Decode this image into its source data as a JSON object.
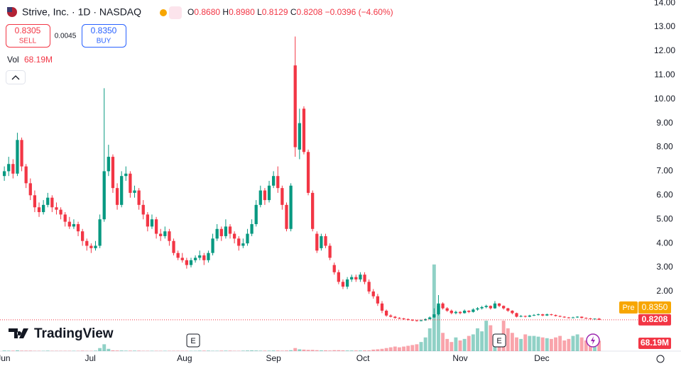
{
  "chart_data": {
    "type": "candlestick",
    "title": "Strive, Inc. · 1D · NASDAQ",
    "ohlc_header": [
      [
        "O",
        "0.8680"
      ],
      [
        "H",
        "0.8980"
      ],
      [
        "L",
        "0.8129"
      ],
      [
        "C",
        "0.8208"
      ]
    ],
    "change": "−0.0396 (−4.60%)",
    "quote": {
      "sell": "0.8305",
      "sell_label": "SELL",
      "spread": "0.0045",
      "buy": "0.8350",
      "buy_label": "BUY"
    },
    "volume_label": "Vol",
    "volume_value": "68.19M",
    "pre_label": "Pre",
    "pre_price": "0.8350",
    "last_price": {
      "value": 0.8208,
      "label": "0.8208"
    },
    "last_volume_label": "68.19M",
    "earnings": [
      {
        "x": 43.5,
        "label": "E"
      },
      {
        "x": 114,
        "label": "E"
      }
    ],
    "brand": "TradingView",
    "up_color": "#089981",
    "down_color": "#f23645",
    "xlim": [
      -1,
      140
    ],
    "xticks": [
      {
        "value": -0.2,
        "label": "Jun"
      },
      {
        "value": 19.8,
        "label": "Jul"
      },
      {
        "value": 41.5,
        "label": "Aug"
      },
      {
        "value": 62,
        "label": "Sep"
      },
      {
        "value": 82.6,
        "label": "Oct"
      },
      {
        "value": 105,
        "label": "Nov"
      },
      {
        "value": 123.8,
        "label": "Dec"
      }
    ],
    "ylim": [
      -0.48,
      14.12
    ],
    "yticks": [
      {
        "value": 2,
        "label": "2.00"
      },
      {
        "value": 3,
        "label": "3.00"
      },
      {
        "value": 4,
        "label": "4.00"
      },
      {
        "value": 5,
        "label": "5.00"
      },
      {
        "value": 6,
        "label": "6.00"
      },
      {
        "value": 7,
        "label": "7.00"
      },
      {
        "value": 8,
        "label": "8.00"
      },
      {
        "value": 9,
        "label": "9.00"
      },
      {
        "value": 10,
        "label": "10.00"
      },
      {
        "value": 11,
        "label": "11.00"
      },
      {
        "value": 12,
        "label": "12.00"
      },
      {
        "value": 13,
        "label": "13.00"
      },
      {
        "value": 14,
        "label": "14.00"
      }
    ],
    "volume_lim": [
      0,
      630
    ],
    "ohlc": [
      [
        6.8,
        7.2,
        6.6,
        7.0
      ],
      [
        7.0,
        7.6,
        6.8,
        7.3
      ],
      [
        7.3,
        7.5,
        6.7,
        6.9
      ],
      [
        6.9,
        8.6,
        6.8,
        8.3
      ],
      [
        8.3,
        8.4,
        7.0,
        7.2
      ],
      [
        7.2,
        7.3,
        6.3,
        6.5
      ],
      [
        6.5,
        6.7,
        5.8,
        6.0
      ],
      [
        6.0,
        6.2,
        5.3,
        5.5
      ],
      [
        5.5,
        5.7,
        5.1,
        5.3
      ],
      [
        5.3,
        5.8,
        5.2,
        5.6
      ],
      [
        5.6,
        6.1,
        5.5,
        5.9
      ],
      [
        5.9,
        6.0,
        5.3,
        5.5
      ],
      [
        5.5,
        5.7,
        5.2,
        5.4
      ],
      [
        5.4,
        5.5,
        5.0,
        5.2
      ],
      [
        5.2,
        5.3,
        4.7,
        4.9
      ],
      [
        4.9,
        5.1,
        4.6,
        4.7
      ],
      [
        4.7,
        5.0,
        4.6,
        4.8
      ],
      [
        4.8,
        4.9,
        4.3,
        4.5
      ],
      [
        4.5,
        4.6,
        3.9,
        4.1
      ],
      [
        4.1,
        4.2,
        3.7,
        3.9
      ],
      [
        3.9,
        4.0,
        3.6,
        3.8
      ],
      [
        3.8,
        4.1,
        3.7,
        3.9
      ],
      [
        3.9,
        5.2,
        3.8,
        5.0
      ],
      [
        5.0,
        10.45,
        4.9,
        7.0
      ],
      [
        7.0,
        8.1,
        6.8,
        7.6
      ],
      [
        7.6,
        7.7,
        6.1,
        6.3
      ],
      [
        6.3,
        6.5,
        5.4,
        5.6
      ],
      [
        5.6,
        7.0,
        5.5,
        6.8
      ],
      [
        6.8,
        7.2,
        6.6,
        6.9
      ],
      [
        6.9,
        7.0,
        5.9,
        6.1
      ],
      [
        6.1,
        6.4,
        5.9,
        6.2
      ],
      [
        6.2,
        6.3,
        5.4,
        5.6
      ],
      [
        5.6,
        5.8,
        5.0,
        5.2
      ],
      [
        5.2,
        5.3,
        4.5,
        4.7
      ],
      [
        4.7,
        5.2,
        4.6,
        5.0
      ],
      [
        5.0,
        5.1,
        4.2,
        4.4
      ],
      [
        4.4,
        4.6,
        4.1,
        4.3
      ],
      [
        4.3,
        4.7,
        4.2,
        4.5
      ],
      [
        4.5,
        4.6,
        3.9,
        4.1
      ],
      [
        4.1,
        4.2,
        3.5,
        3.6
      ],
      [
        3.6,
        3.7,
        3.3,
        3.4
      ],
      [
        3.4,
        3.6,
        3.2,
        3.3
      ],
      [
        3.3,
        3.4,
        2.95,
        3.1
      ],
      [
        3.1,
        3.4,
        3.0,
        3.3
      ],
      [
        3.3,
        3.5,
        3.2,
        3.4
      ],
      [
        3.4,
        3.7,
        3.3,
        3.5
      ],
      [
        3.5,
        3.6,
        3.1,
        3.3
      ],
      [
        3.3,
        3.7,
        3.2,
        3.6
      ],
      [
        3.6,
        4.4,
        3.5,
        4.2
      ],
      [
        4.2,
        4.8,
        4.1,
        4.6
      ],
      [
        4.6,
        4.7,
        4.1,
        4.3
      ],
      [
        4.3,
        5.0,
        4.2,
        4.7
      ],
      [
        4.7,
        4.8,
        4.2,
        4.4
      ],
      [
        4.4,
        4.5,
        4.0,
        4.2
      ],
      [
        4.2,
        4.3,
        3.7,
        3.9
      ],
      [
        3.9,
        4.2,
        3.8,
        4.0
      ],
      [
        4.0,
        4.6,
        3.9,
        4.4
      ],
      [
        4.4,
        5.0,
        4.3,
        4.8
      ],
      [
        4.8,
        5.8,
        4.7,
        5.6
      ],
      [
        5.6,
        6.4,
        5.5,
        6.2
      ],
      [
        6.2,
        6.3,
        5.6,
        5.8
      ],
      [
        5.8,
        6.6,
        5.7,
        6.4
      ],
      [
        6.4,
        7.0,
        6.3,
        6.8
      ],
      [
        6.8,
        7.2,
        6.1,
        6.3
      ],
      [
        6.3,
        6.4,
        5.4,
        5.6
      ],
      [
        5.6,
        5.7,
        4.5,
        4.6
      ],
      [
        4.6,
        6.5,
        4.5,
        6.4
      ],
      [
        11.4,
        12.6,
        7.6,
        8.0
      ],
      [
        7.9,
        9.6,
        7.5,
        9.0
      ],
      [
        9.6,
        9.7,
        7.7,
        7.8
      ],
      [
        7.8,
        7.9,
        6.0,
        6.1
      ],
      [
        6.1,
        6.2,
        4.5,
        4.6
      ],
      [
        4.4,
        4.5,
        3.6,
        3.7
      ],
      [
        3.8,
        4.4,
        3.7,
        4.3
      ],
      [
        4.3,
        4.4,
        3.8,
        3.9
      ],
      [
        3.9,
        4.0,
        3.3,
        3.4
      ],
      [
        3.1,
        3.2,
        2.7,
        2.8
      ],
      [
        2.8,
        2.9,
        2.3,
        2.4
      ],
      [
        2.4,
        2.5,
        2.1,
        2.2
      ],
      [
        2.2,
        2.6,
        2.1,
        2.5
      ],
      [
        2.5,
        2.7,
        2.4,
        2.6
      ],
      [
        2.6,
        2.7,
        2.4,
        2.5
      ],
      [
        2.5,
        2.8,
        2.4,
        2.7
      ],
      [
        2.7,
        2.8,
        2.3,
        2.4
      ],
      [
        2.4,
        2.5,
        1.9,
        2.0
      ],
      [
        2.0,
        2.1,
        1.7,
        1.8
      ],
      [
        1.8,
        1.9,
        1.4,
        1.5
      ],
      [
        1.5,
        1.6,
        1.1,
        1.2
      ],
      [
        1.2,
        1.25,
        0.95,
        1.0
      ],
      [
        1.0,
        1.05,
        0.92,
        0.95
      ],
      [
        0.95,
        0.98,
        0.87,
        0.9
      ],
      [
        0.9,
        0.93,
        0.85,
        0.88
      ],
      [
        0.88,
        0.9,
        0.82,
        0.85
      ],
      [
        0.85,
        0.88,
        0.79,
        0.82
      ],
      [
        0.82,
        0.85,
        0.77,
        0.8
      ],
      [
        0.8,
        0.82,
        0.75,
        0.78
      ],
      [
        0.78,
        0.83,
        0.76,
        0.8
      ],
      [
        0.8,
        0.88,
        0.78,
        0.85
      ],
      [
        0.85,
        0.96,
        0.83,
        0.92
      ],
      [
        0.92,
        1.3,
        0.9,
        1.05
      ],
      [
        1.05,
        1.85,
        1.0,
        1.5
      ],
      [
        1.5,
        1.55,
        1.25,
        1.3
      ],
      [
        1.3,
        1.35,
        1.15,
        1.2
      ],
      [
        1.2,
        1.25,
        1.05,
        1.1
      ],
      [
        1.1,
        1.2,
        1.05,
        1.15
      ],
      [
        1.15,
        1.18,
        1.05,
        1.1
      ],
      [
        1.1,
        1.25,
        1.08,
        1.2
      ],
      [
        1.2,
        1.22,
        1.1,
        1.15
      ],
      [
        1.15,
        1.3,
        1.12,
        1.25
      ],
      [
        1.25,
        1.35,
        1.2,
        1.3
      ],
      [
        1.3,
        1.4,
        1.25,
        1.35
      ],
      [
        1.35,
        1.45,
        1.3,
        1.4
      ],
      [
        1.4,
        1.42,
        1.25,
        1.3
      ],
      [
        1.3,
        1.6,
        1.28,
        1.5
      ],
      [
        1.5,
        1.52,
        1.35,
        1.4
      ],
      [
        1.4,
        1.42,
        1.25,
        1.3
      ],
      [
        1.3,
        1.32,
        1.15,
        1.2
      ],
      [
        1.2,
        1.22,
        1.05,
        1.1
      ],
      [
        1.1,
        1.12,
        0.92,
        0.95
      ],
      [
        0.95,
        1.02,
        0.93,
        0.98
      ],
      [
        0.98,
        1.0,
        0.92,
        0.95
      ],
      [
        0.95,
        1.03,
        0.93,
        1.0
      ],
      [
        1.0,
        1.06,
        0.98,
        1.02
      ],
      [
        1.02,
        1.08,
        1.0,
        1.05
      ],
      [
        1.05,
        1.07,
        0.97,
        1.0
      ],
      [
        1.0,
        1.08,
        0.98,
        1.05
      ],
      [
        1.05,
        1.07,
        1.0,
        1.02
      ],
      [
        1.02,
        1.04,
        0.96,
        0.98
      ],
      [
        0.98,
        1.0,
        0.93,
        0.95
      ],
      [
        0.95,
        0.97,
        0.9,
        0.92
      ],
      [
        0.92,
        0.94,
        0.88,
        0.9
      ],
      [
        0.9,
        0.95,
        0.89,
        0.92
      ],
      [
        0.92,
        0.97,
        0.9,
        0.95
      ],
      [
        0.95,
        0.96,
        0.88,
        0.9
      ],
      [
        0.9,
        0.92,
        0.86,
        0.88
      ],
      [
        0.88,
        0.9,
        0.84,
        0.86
      ],
      [
        0.86,
        0.88,
        0.84,
        0.87
      ],
      [
        0.868,
        0.898,
        0.8129,
        0.8208
      ]
    ],
    "volume": [
      4,
      3,
      3,
      5,
      3,
      3,
      3,
      2,
      2,
      2,
      3,
      2,
      2,
      2,
      2,
      2,
      2,
      2,
      3,
      2,
      2,
      3,
      20,
      45,
      15,
      5,
      4,
      4,
      3,
      3,
      3,
      3,
      2,
      2,
      2,
      2,
      2,
      2,
      2,
      2,
      2,
      2,
      2,
      2,
      2,
      3,
      3,
      3,
      2,
      2,
      3,
      3,
      3,
      2,
      2,
      3,
      4,
      5,
      4,
      3,
      3,
      3,
      4,
      4,
      3,
      4,
      6,
      20,
      12,
      10,
      8,
      8,
      6,
      5,
      5,
      4,
      6,
      6,
      5,
      4,
      4,
      4,
      4,
      5,
      5,
      10,
      12,
      15,
      20,
      25,
      30,
      25,
      30,
      35,
      40,
      45,
      60,
      90,
      150,
      570,
      300,
      120,
      80,
      60,
      90,
      70,
      80,
      100,
      110,
      150,
      130,
      200,
      170,
      100,
      110,
      200,
      150,
      120,
      90,
      80,
      110,
      100,
      100,
      95,
      90,
      85,
      80,
      90,
      100,
      70,
      80,
      100,
      110,
      90,
      70,
      80,
      90,
      68.19
    ]
  }
}
